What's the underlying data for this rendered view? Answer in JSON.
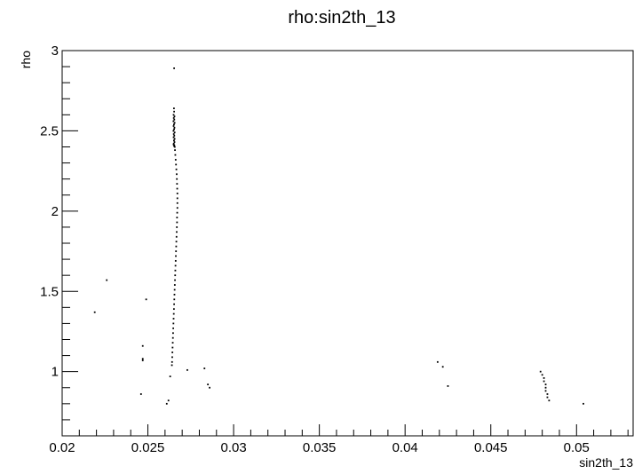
{
  "chart_data": {
    "type": "scatter",
    "title": "rho:sin2th_13",
    "xlabel": "sin2th_13",
    "ylabel": "rho",
    "xlim": [
      0.02,
      0.0533
    ],
    "ylim": [
      0.6,
      3.0
    ],
    "x_ticks": [
      {
        "value": 0.02,
        "label": "0.02"
      },
      {
        "value": 0.025,
        "label": "0.025"
      },
      {
        "value": 0.03,
        "label": "0.03"
      },
      {
        "value": 0.035,
        "label": "0.035"
      },
      {
        "value": 0.04,
        "label": "0.04"
      },
      {
        "value": 0.045,
        "label": "0.045"
      },
      {
        "value": 0.05,
        "label": "0.05"
      }
    ],
    "y_ticks": [
      {
        "value": 1.0,
        "label": "1"
      },
      {
        "value": 1.5,
        "label": "1.5"
      },
      {
        "value": 2.0,
        "label": "2"
      },
      {
        "value": 2.5,
        "label": "2.5"
      },
      {
        "value": 3.0,
        "label": "3"
      }
    ],
    "grid": false,
    "points": [
      [
        0.02653,
        2.89
      ],
      [
        0.02652,
        2.64
      ],
      [
        0.02653,
        2.62
      ],
      [
        0.0265,
        2.6
      ],
      [
        0.02655,
        2.59
      ],
      [
        0.02651,
        2.58
      ],
      [
        0.02654,
        2.57
      ],
      [
        0.02649,
        2.56
      ],
      [
        0.02656,
        2.55
      ],
      [
        0.02652,
        2.54
      ],
      [
        0.0265,
        2.53
      ],
      [
        0.02655,
        2.52
      ],
      [
        0.02653,
        2.51
      ],
      [
        0.02649,
        2.5
      ],
      [
        0.02656,
        2.49
      ],
      [
        0.02651,
        2.48
      ],
      [
        0.02654,
        2.47
      ],
      [
        0.0265,
        2.46
      ],
      [
        0.02656,
        2.45
      ],
      [
        0.02652,
        2.44
      ],
      [
        0.02655,
        2.43
      ],
      [
        0.02651,
        2.42
      ],
      [
        0.02654,
        2.41
      ],
      [
        0.02657,
        2.4
      ],
      [
        0.02653,
        2.405
      ],
      [
        0.0265,
        2.415
      ],
      [
        0.02658,
        2.38
      ],
      [
        0.0266,
        2.35
      ],
      [
        0.02662,
        2.32
      ],
      [
        0.02664,
        2.29
      ],
      [
        0.02666,
        2.26
      ],
      [
        0.02668,
        2.23
      ],
      [
        0.02669,
        2.2
      ],
      [
        0.0267,
        2.17
      ],
      [
        0.02671,
        2.14
      ],
      [
        0.02672,
        2.11
      ],
      [
        0.02672,
        2.08
      ],
      [
        0.02672,
        2.05
      ],
      [
        0.02672,
        2.02
      ],
      [
        0.02671,
        1.99
      ],
      [
        0.0267,
        1.96
      ],
      [
        0.0267,
        1.93
      ],
      [
        0.02669,
        1.9
      ],
      [
        0.02668,
        1.87
      ],
      [
        0.02667,
        1.84
      ],
      [
        0.02666,
        1.81
      ],
      [
        0.02665,
        1.78
      ],
      [
        0.02664,
        1.75
      ],
      [
        0.02663,
        1.72
      ],
      [
        0.02662,
        1.69
      ],
      [
        0.02661,
        1.66
      ],
      [
        0.0266,
        1.63
      ],
      [
        0.02659,
        1.6
      ],
      [
        0.02658,
        1.57
      ],
      [
        0.02657,
        1.54
      ],
      [
        0.02656,
        1.51
      ],
      [
        0.02655,
        1.48
      ],
      [
        0.02654,
        1.45
      ],
      [
        0.02653,
        1.42
      ],
      [
        0.02652,
        1.39
      ],
      [
        0.02651,
        1.36
      ],
      [
        0.0265,
        1.33
      ],
      [
        0.02649,
        1.3
      ],
      [
        0.02648,
        1.27
      ],
      [
        0.02647,
        1.24
      ],
      [
        0.02646,
        1.21
      ],
      [
        0.02645,
        1.18
      ],
      [
        0.02644,
        1.15
      ],
      [
        0.02643,
        1.12
      ],
      [
        0.02642,
        1.09
      ],
      [
        0.02641,
        1.06
      ],
      [
        0.0264,
        1.04
      ],
      [
        0.0219,
        1.37
      ],
      [
        0.0226,
        1.57
      ],
      [
        0.0249,
        1.45
      ],
      [
        0.0247,
        1.16
      ],
      [
        0.0247,
        1.08
      ],
      [
        0.0247,
        1.07
      ],
      [
        0.0246,
        0.86
      ],
      [
        0.0263,
        0.97
      ],
      [
        0.0262,
        0.82
      ],
      [
        0.0261,
        0.8
      ],
      [
        0.0273,
        1.01
      ],
      [
        0.0283,
        1.02
      ],
      [
        0.0285,
        0.92
      ],
      [
        0.0286,
        0.9
      ],
      [
        0.0419,
        1.06
      ],
      [
        0.0422,
        1.03
      ],
      [
        0.0425,
        0.91
      ],
      [
        0.0479,
        1.0
      ],
      [
        0.048,
        0.98
      ],
      [
        0.0481,
        0.96
      ],
      [
        0.0481,
        0.94
      ],
      [
        0.0482,
        0.92
      ],
      [
        0.0482,
        0.9
      ],
      [
        0.0482,
        0.88
      ],
      [
        0.0483,
        0.86
      ],
      [
        0.0483,
        0.84
      ],
      [
        0.0484,
        0.82
      ],
      [
        0.0504,
        0.8
      ]
    ]
  }
}
